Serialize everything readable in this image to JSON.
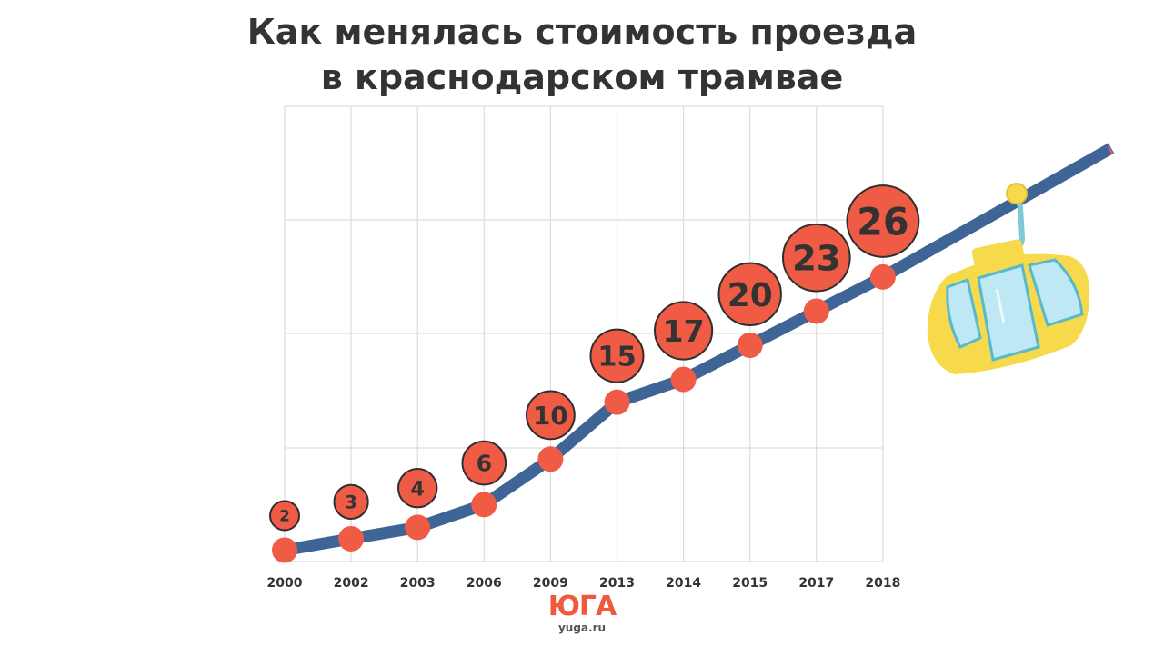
{
  "title_line1": "Как менялась стоимость проезда",
  "title_line2": "в краснодарском трамвае",
  "logo_text": "ЮГА",
  "site_text": "yuga.ru",
  "colors": {
    "line": "#3f6596",
    "point": "#f05b45",
    "badge_stroke": "#2f2f2f",
    "label_text": "#333333",
    "grid": "#dddddd",
    "cabin_body": "#f7d94c",
    "cabin_window": "#bfe8f5",
    "cabin_frame": "#59b9cc",
    "cable": "#3f6596"
  },
  "icons": {
    "cable_car": "cable-car-icon"
  },
  "chart_data": {
    "type": "line",
    "title": "Как менялась стоимость проезда в краснодарском трамвае",
    "categories": [
      "2000",
      "2002",
      "2003",
      "2006",
      "2009",
      "2013",
      "2014",
      "2015",
      "2017",
      "2018"
    ],
    "values": [
      2,
      3,
      4,
      6,
      10,
      15,
      17,
      20,
      23,
      26
    ],
    "ylim": [
      1,
      41
    ],
    "grid": true,
    "legend": "none",
    "xlabel": "",
    "ylabel": ""
  }
}
